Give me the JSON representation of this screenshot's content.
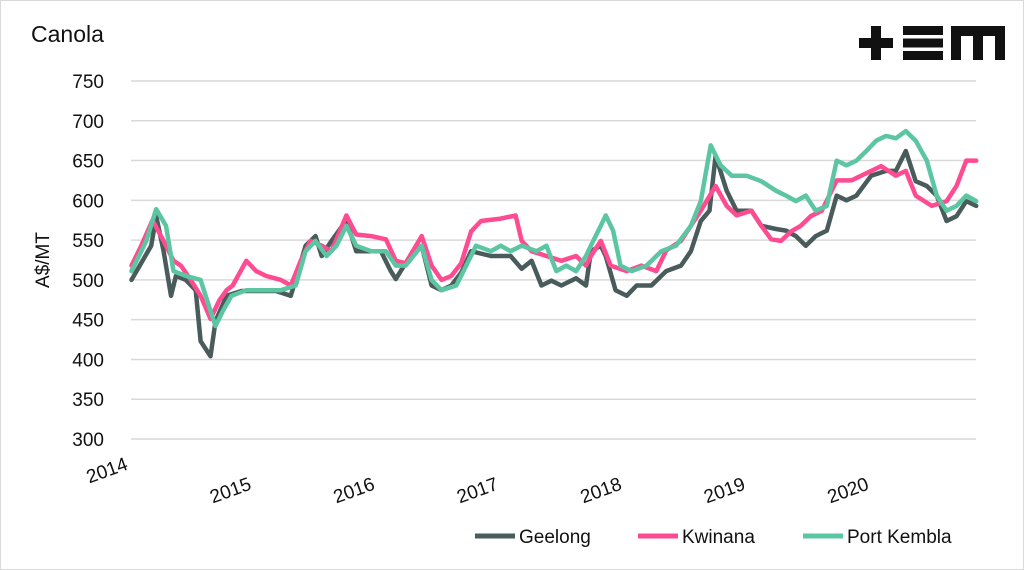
{
  "logo_text": "+EM",
  "chart_data": {
    "type": "line",
    "title": "Canola",
    "xlabel": "",
    "ylabel": "A$/MT",
    "xlim": [
      2014,
      2020.86
    ],
    "ylim": [
      300,
      750
    ],
    "yticks": [
      300,
      350,
      400,
      450,
      500,
      550,
      600,
      650,
      700,
      750
    ],
    "xticks": [
      2014,
      2015,
      2016,
      2017,
      2018,
      2019,
      2020
    ],
    "grid": true,
    "legend": "bottom-right",
    "series": [
      {
        "name": "Geelong",
        "color": "#4a5b5b",
        "points": [
          [
            2014.02,
            500
          ],
          [
            2014.18,
            543
          ],
          [
            2014.22,
            580
          ],
          [
            2014.28,
            536
          ],
          [
            2014.34,
            480
          ],
          [
            2014.38,
            505
          ],
          [
            2014.46,
            500
          ],
          [
            2014.54,
            487
          ],
          [
            2014.58,
            423
          ],
          [
            2014.66,
            404
          ],
          [
            2014.7,
            448
          ],
          [
            2014.79,
            480
          ],
          [
            2014.91,
            486
          ],
          [
            2015.07,
            486
          ],
          [
            2015.19,
            486
          ],
          [
            2015.31,
            480
          ],
          [
            2015.43,
            543
          ],
          [
            2015.51,
            555
          ],
          [
            2015.56,
            530
          ],
          [
            2015.64,
            549
          ],
          [
            2015.76,
            575
          ],
          [
            2015.84,
            536
          ],
          [
            2015.96,
            536
          ],
          [
            2016.04,
            536
          ],
          [
            2016.12,
            511
          ],
          [
            2016.16,
            501
          ],
          [
            2016.24,
            521
          ],
          [
            2016.37,
            543
          ],
          [
            2016.45,
            493
          ],
          [
            2016.53,
            487
          ],
          [
            2016.61,
            493
          ],
          [
            2016.69,
            509
          ],
          [
            2016.77,
            536
          ],
          [
            2016.93,
            530
          ],
          [
            2017.09,
            530
          ],
          [
            2017.18,
            514
          ],
          [
            2017.26,
            524
          ],
          [
            2017.34,
            493
          ],
          [
            2017.42,
            499
          ],
          [
            2017.5,
            493
          ],
          [
            2017.62,
            502
          ],
          [
            2017.7,
            493
          ],
          [
            2017.74,
            536
          ],
          [
            2017.82,
            543
          ],
          [
            2017.86,
            530
          ],
          [
            2017.94,
            487
          ],
          [
            2018.03,
            480
          ],
          [
            2018.11,
            493
          ],
          [
            2018.23,
            493
          ],
          [
            2018.35,
            511
          ],
          [
            2018.47,
            518
          ],
          [
            2018.55,
            536
          ],
          [
            2018.63,
            574
          ],
          [
            2018.7,
            587
          ],
          [
            2018.75,
            656
          ],
          [
            2018.84,
            612
          ],
          [
            2018.92,
            587
          ],
          [
            2019.04,
            587
          ],
          [
            2019.12,
            568
          ],
          [
            2019.24,
            564
          ],
          [
            2019.32,
            562
          ],
          [
            2019.4,
            555
          ],
          [
            2019.48,
            543
          ],
          [
            2019.56,
            555
          ],
          [
            2019.65,
            562
          ],
          [
            2019.73,
            606
          ],
          [
            2019.81,
            600
          ],
          [
            2019.89,
            606
          ],
          [
            2020.01,
            631
          ],
          [
            2020.13,
            637
          ],
          [
            2020.21,
            637
          ],
          [
            2020.29,
            662
          ],
          [
            2020.37,
            624
          ],
          [
            2020.46,
            618
          ],
          [
            2020.54,
            606
          ],
          [
            2020.62,
            574
          ],
          [
            2020.7,
            580
          ],
          [
            2020.78,
            599
          ],
          [
            2020.86,
            593
          ]
        ]
      },
      {
        "name": "Kwinana",
        "color": "#ff4b91",
        "points": [
          [
            2014.02,
            518
          ],
          [
            2014.1,
            543
          ],
          [
            2014.19,
            575
          ],
          [
            2014.28,
            549
          ],
          [
            2014.36,
            524
          ],
          [
            2014.42,
            518
          ],
          [
            2014.5,
            500
          ],
          [
            2014.58,
            480
          ],
          [
            2014.66,
            451
          ],
          [
            2014.73,
            474
          ],
          [
            2014.79,
            487
          ],
          [
            2014.84,
            493
          ],
          [
            2014.95,
            524
          ],
          [
            2015.03,
            511
          ],
          [
            2015.11,
            505
          ],
          [
            2015.23,
            500
          ],
          [
            2015.31,
            493
          ],
          [
            2015.39,
            524
          ],
          [
            2015.47,
            549
          ],
          [
            2015.56,
            543
          ],
          [
            2015.64,
            536
          ],
          [
            2015.76,
            581
          ],
          [
            2015.84,
            557
          ],
          [
            2015.96,
            555
          ],
          [
            2016.08,
            551
          ],
          [
            2016.16,
            524
          ],
          [
            2016.24,
            521
          ],
          [
            2016.37,
            555
          ],
          [
            2016.45,
            518
          ],
          [
            2016.53,
            500
          ],
          [
            2016.61,
            505
          ],
          [
            2016.69,
            521
          ],
          [
            2016.77,
            561
          ],
          [
            2016.85,
            574
          ],
          [
            2017.01,
            577
          ],
          [
            2017.13,
            581
          ],
          [
            2017.18,
            549
          ],
          [
            2017.26,
            536
          ],
          [
            2017.38,
            530
          ],
          [
            2017.5,
            524
          ],
          [
            2017.62,
            530
          ],
          [
            2017.7,
            518
          ],
          [
            2017.74,
            530
          ],
          [
            2017.82,
            549
          ],
          [
            2017.9,
            518
          ],
          [
            2018.03,
            511
          ],
          [
            2018.15,
            518
          ],
          [
            2018.27,
            511
          ],
          [
            2018.35,
            537
          ],
          [
            2018.47,
            549
          ],
          [
            2018.63,
            587
          ],
          [
            2018.75,
            618
          ],
          [
            2018.84,
            593
          ],
          [
            2018.92,
            581
          ],
          [
            2019.04,
            587
          ],
          [
            2019.12,
            568
          ],
          [
            2019.2,
            551
          ],
          [
            2019.28,
            549
          ],
          [
            2019.36,
            561
          ],
          [
            2019.44,
            568
          ],
          [
            2019.52,
            580
          ],
          [
            2019.61,
            587
          ],
          [
            2019.73,
            625
          ],
          [
            2019.85,
            625
          ],
          [
            2020.01,
            637
          ],
          [
            2020.09,
            643
          ],
          [
            2020.21,
            631
          ],
          [
            2020.29,
            637
          ],
          [
            2020.37,
            606
          ],
          [
            2020.5,
            593
          ],
          [
            2020.62,
            599
          ],
          [
            2020.7,
            618
          ],
          [
            2020.78,
            650
          ],
          [
            2020.86,
            650
          ]
        ]
      },
      {
        "name": "Port Kembla",
        "color": "#5cc6a3",
        "points": [
          [
            2014.02,
            511
          ],
          [
            2014.14,
            549
          ],
          [
            2014.22,
            589
          ],
          [
            2014.3,
            568
          ],
          [
            2014.36,
            511
          ],
          [
            2014.46,
            505
          ],
          [
            2014.58,
            500
          ],
          [
            2014.66,
            461
          ],
          [
            2014.7,
            442
          ],
          [
            2014.76,
            461
          ],
          [
            2014.83,
            480
          ],
          [
            2014.95,
            487
          ],
          [
            2015.07,
            487
          ],
          [
            2015.23,
            487
          ],
          [
            2015.35,
            493
          ],
          [
            2015.43,
            536
          ],
          [
            2015.51,
            549
          ],
          [
            2015.6,
            530
          ],
          [
            2015.68,
            543
          ],
          [
            2015.76,
            568
          ],
          [
            2015.84,
            543
          ],
          [
            2015.96,
            536
          ],
          [
            2016.08,
            536
          ],
          [
            2016.16,
            518
          ],
          [
            2016.24,
            518
          ],
          [
            2016.37,
            543
          ],
          [
            2016.45,
            500
          ],
          [
            2016.53,
            487
          ],
          [
            2016.65,
            493
          ],
          [
            2016.73,
            518
          ],
          [
            2016.81,
            543
          ],
          [
            2016.93,
            536
          ],
          [
            2017.01,
            543
          ],
          [
            2017.09,
            536
          ],
          [
            2017.18,
            543
          ],
          [
            2017.3,
            536
          ],
          [
            2017.38,
            543
          ],
          [
            2017.46,
            511
          ],
          [
            2017.54,
            518
          ],
          [
            2017.62,
            511
          ],
          [
            2017.7,
            530
          ],
          [
            2017.74,
            543
          ],
          [
            2017.82,
            568
          ],
          [
            2017.86,
            581
          ],
          [
            2017.92,
            562
          ],
          [
            2017.98,
            518
          ],
          [
            2018.07,
            511
          ],
          [
            2018.19,
            518
          ],
          [
            2018.31,
            536
          ],
          [
            2018.43,
            543
          ],
          [
            2018.55,
            568
          ],
          [
            2018.63,
            599
          ],
          [
            2018.71,
            669
          ],
          [
            2018.79,
            644
          ],
          [
            2018.88,
            631
          ],
          [
            2019.0,
            631
          ],
          [
            2019.12,
            624
          ],
          [
            2019.24,
            612
          ],
          [
            2019.32,
            606
          ],
          [
            2019.4,
            599
          ],
          [
            2019.48,
            606
          ],
          [
            2019.56,
            587
          ],
          [
            2019.65,
            593
          ],
          [
            2019.73,
            650
          ],
          [
            2019.81,
            644
          ],
          [
            2019.89,
            650
          ],
          [
            2019.97,
            662
          ],
          [
            2020.05,
            675
          ],
          [
            2020.13,
            681
          ],
          [
            2020.21,
            678
          ],
          [
            2020.29,
            687
          ],
          [
            2020.37,
            675
          ],
          [
            2020.46,
            650
          ],
          [
            2020.54,
            606
          ],
          [
            2020.62,
            587
          ],
          [
            2020.7,
            593
          ],
          [
            2020.78,
            606
          ],
          [
            2020.86,
            599
          ]
        ]
      }
    ]
  }
}
